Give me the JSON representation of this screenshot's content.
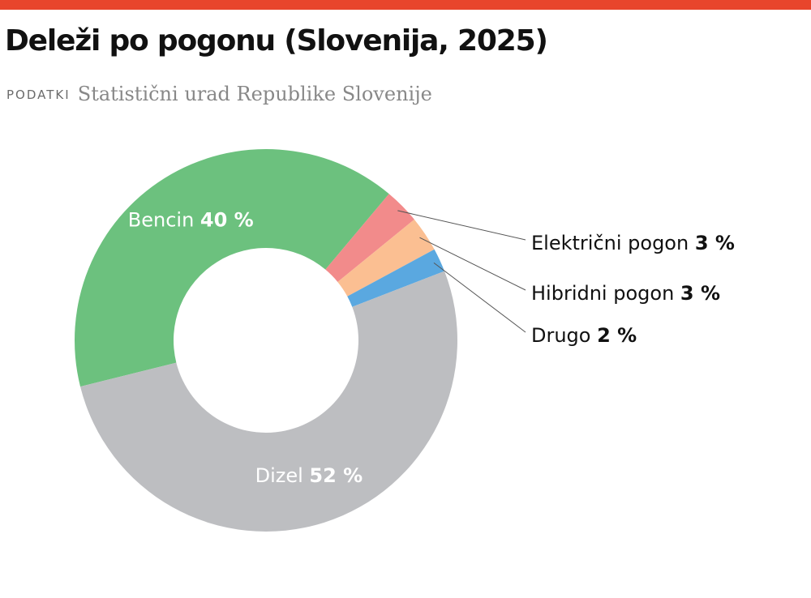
{
  "title": "Deleži po pogonu (Slovenija, 2025)",
  "source": {
    "label": "PODATKI",
    "text": "Statistični urad Republike Slovenije"
  },
  "colors": {
    "accent_bar": "#e8452c"
  },
  "chart_data": {
    "type": "pie",
    "variant": "donut",
    "slices": [
      {
        "label": "Bencin",
        "value": 40,
        "value_text": "40 %",
        "color": "#6cc17e",
        "label_position": "inside"
      },
      {
        "label": "Električni pogon",
        "value": 3,
        "value_text": "3 %",
        "color": "#f28b8b",
        "label_position": "outside"
      },
      {
        "label": "Hibridni pogon",
        "value": 3,
        "value_text": "3 %",
        "color": "#fbbf92",
        "label_position": "outside"
      },
      {
        "label": "Drugo",
        "value": 2,
        "value_text": "2 %",
        "color": "#5aa8e0",
        "label_position": "outside"
      },
      {
        "label": "Dizel",
        "value": 52,
        "value_text": "52 %",
        "color": "#bdbec1",
        "label_position": "inside"
      }
    ]
  }
}
